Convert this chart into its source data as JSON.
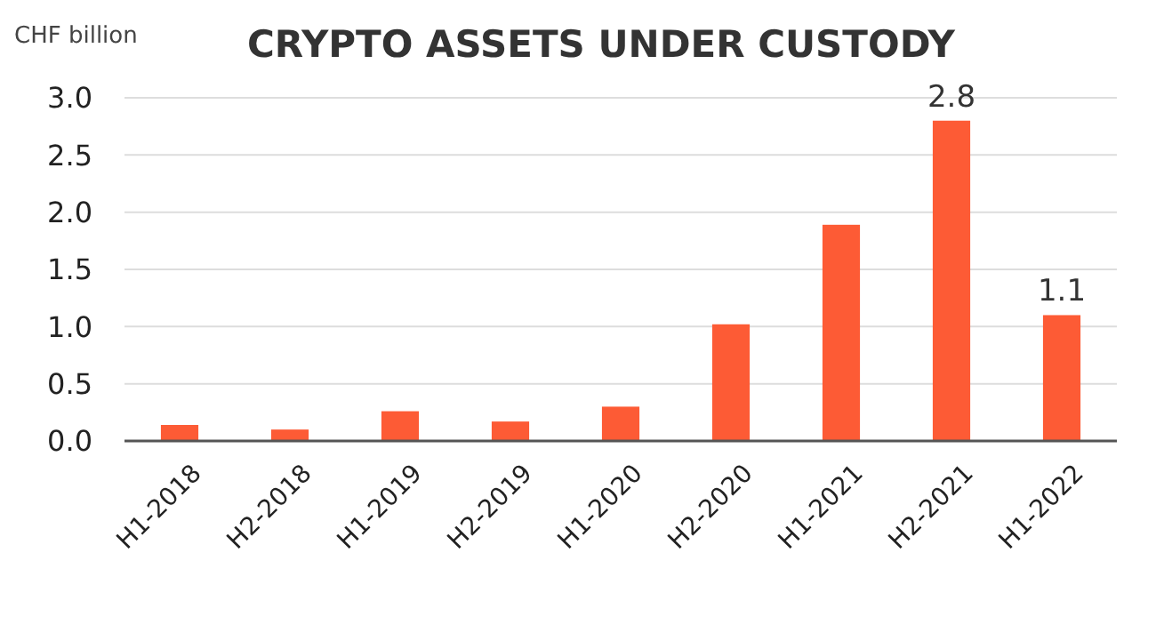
{
  "chart_data": {
    "type": "bar",
    "title": "CRYPTO ASSETS UNDER CUSTODY",
    "ylabel": "CHF billion",
    "categories": [
      "H1-2018",
      "H2-2018",
      "H1-2019",
      "H2-2019",
      "H1-2020",
      "H2-2020",
      "H1-2021",
      "H2-2021",
      "H1-2022"
    ],
    "values": [
      0.14,
      0.1,
      0.26,
      0.17,
      0.3,
      1.02,
      1.89,
      2.8,
      1.1
    ],
    "value_labels": [
      null,
      null,
      null,
      null,
      null,
      null,
      null,
      "2.8",
      "1.1"
    ],
    "color": "#fd5b35",
    "ylim": [
      0,
      3
    ],
    "yticks": [
      {
        "value": 0,
        "label": "0.0"
      },
      {
        "value": 0.5,
        "label": "0.5"
      },
      {
        "value": 1,
        "label": "1.0"
      },
      {
        "value": 1.5,
        "label": "1.5"
      },
      {
        "value": 2,
        "label": "2.0"
      },
      {
        "value": 2.5,
        "label": "2.5"
      },
      {
        "value": 3,
        "label": "3.0"
      }
    ],
    "grid": "y"
  }
}
